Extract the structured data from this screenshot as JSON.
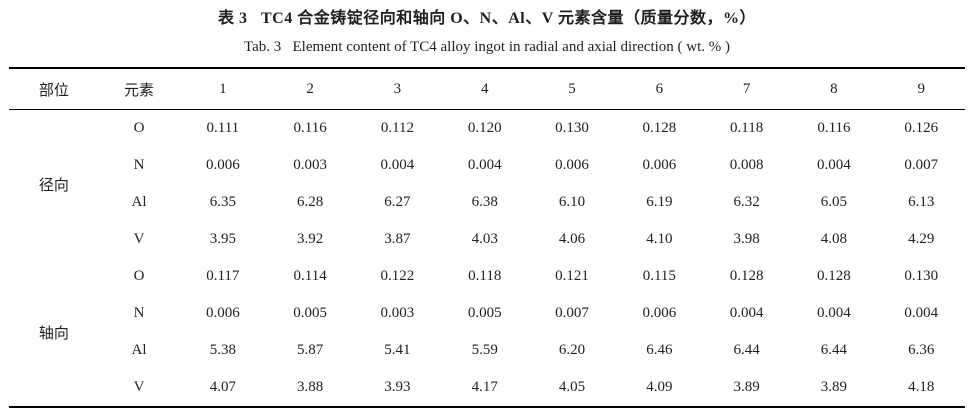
{
  "title": {
    "zh": "表 3   TC4 合金铸锭径向和轴向 O、N、Al、V 元素含量（质量分数，%）",
    "en": "Tab. 3   Element content of TC4 alloy ingot in radial and axial direction ( wt. % )"
  },
  "table": {
    "col_headers": [
      "部位",
      "元素",
      "1",
      "2",
      "3",
      "4",
      "5",
      "6",
      "7",
      "8",
      "9"
    ],
    "sections": [
      {
        "location": "径向",
        "rows": [
          {
            "element": "O",
            "values": [
              "0.111",
              "0.116",
              "0.112",
              "0.120",
              "0.130",
              "0.128",
              "0.118",
              "0.116",
              "0.126"
            ]
          },
          {
            "element": "N",
            "values": [
              "0.006",
              "0.003",
              "0.004",
              "0.004",
              "0.006",
              "0.006",
              "0.008",
              "0.004",
              "0.007"
            ]
          },
          {
            "element": "Al",
            "values": [
              "6.35",
              "6.28",
              "6.27",
              "6.38",
              "6.10",
              "6.19",
              "6.32",
              "6.05",
              "6.13"
            ]
          },
          {
            "element": "V",
            "values": [
              "3.95",
              "3.92",
              "3.87",
              "4.03",
              "4.06",
              "4.10",
              "3.98",
              "4.08",
              "4.29"
            ]
          }
        ]
      },
      {
        "location": "轴向",
        "rows": [
          {
            "element": "O",
            "values": [
              "0.117",
              "0.114",
              "0.122",
              "0.118",
              "0.121",
              "0.115",
              "0.128",
              "0.128",
              "0.130"
            ]
          },
          {
            "element": "N",
            "values": [
              "0.006",
              "0.005",
              "0.003",
              "0.005",
              "0.007",
              "0.006",
              "0.004",
              "0.004",
              "0.004"
            ]
          },
          {
            "element": "Al",
            "values": [
              "5.38",
              "5.87",
              "5.41",
              "5.59",
              "6.20",
              "6.46",
              "6.44",
              "6.44",
              "6.36"
            ]
          },
          {
            "element": "V",
            "values": [
              "4.07",
              "3.88",
              "3.93",
              "4.17",
              "4.05",
              "4.09",
              "3.89",
              "3.89",
              "4.18"
            ]
          }
        ]
      }
    ]
  },
  "colors": {
    "text": "#1f1f1f",
    "rule": "#000000",
    "background": "#ffffff"
  }
}
